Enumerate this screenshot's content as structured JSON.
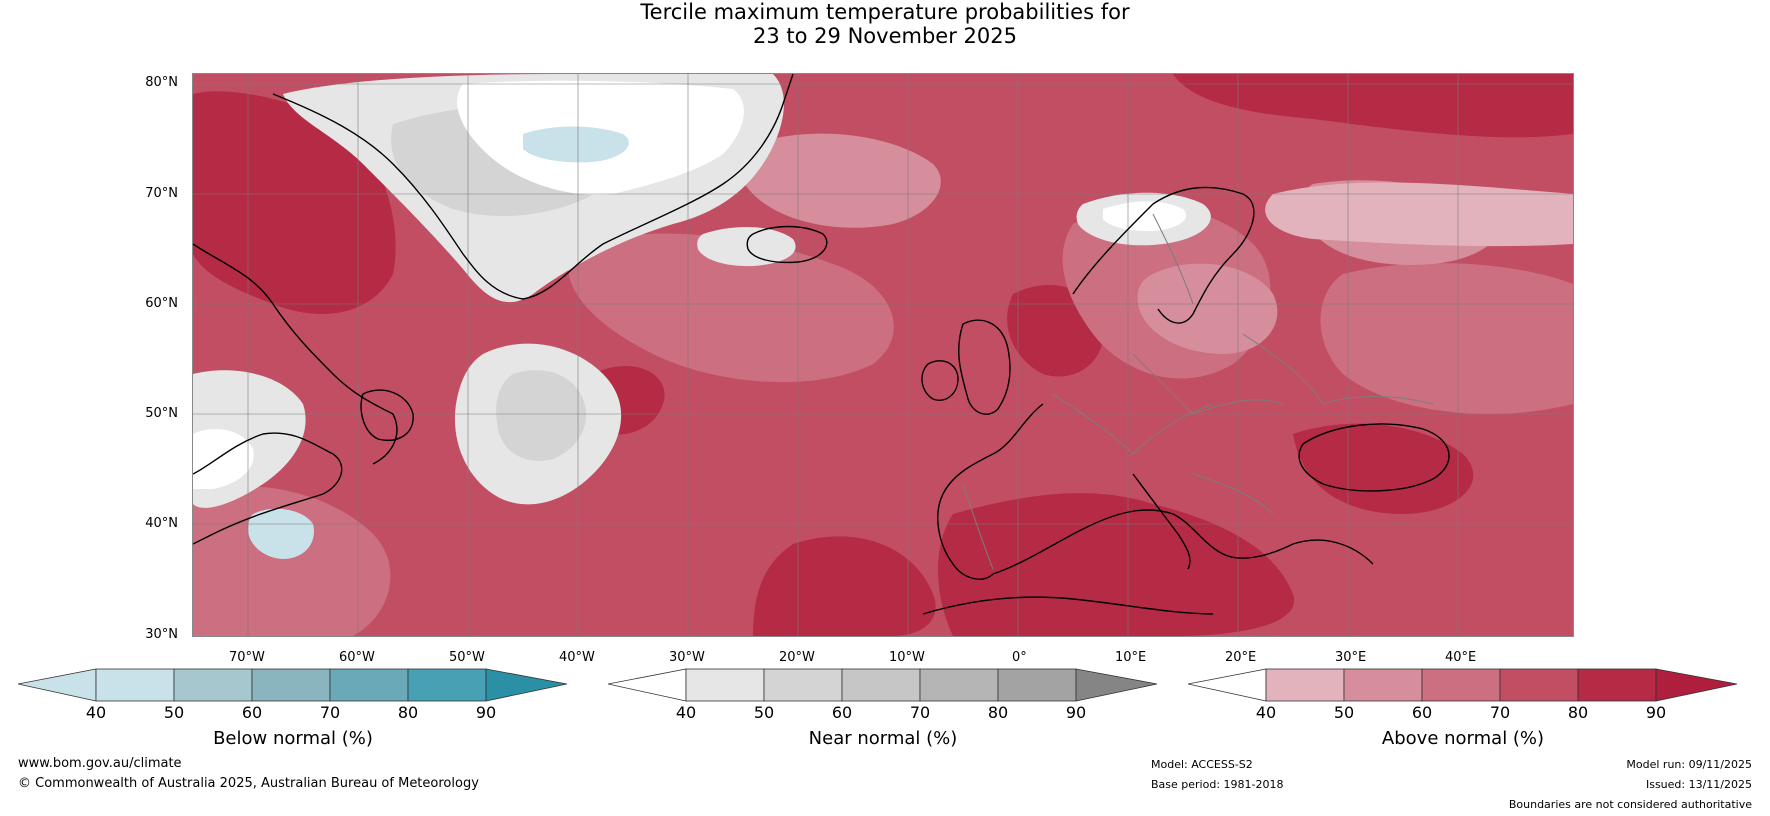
{
  "title": {
    "line1": "Tercile maximum temperature probabilities for",
    "line2": "23 to 29 November 2025"
  },
  "map": {
    "lat_labels": [
      "80°N",
      "70°N",
      "60°N",
      "50°N",
      "40°N",
      "30°N"
    ],
    "lon_labels": [
      "70°W",
      "60°W",
      "50°W",
      "40°W",
      "30°W",
      "20°W",
      "10°W",
      "0°",
      "10°E",
      "20°E",
      "30°E",
      "40°E"
    ],
    "colors": {
      "above_40_50": "#e3b3bd",
      "above_50_60": "#d68e9c",
      "above_60_70": "#cc6f80",
      "above_70_80": "#c24e63",
      "above_80_90": "#b52a45",
      "near_40_50": "#e6e6e6",
      "near_50_60": "#d4d4d4",
      "below_40_50": "#c9e1e8"
    }
  },
  "colorbars": {
    "ticks": [
      "40",
      "50",
      "60",
      "70",
      "80",
      "90"
    ],
    "below": {
      "label": "Below normal (%)",
      "colors": [
        "#c9e1e8",
        "#a7c7ce",
        "#8ab5bf",
        "#6aa9b8",
        "#47a0b3",
        "#2b8fa6"
      ]
    },
    "near": {
      "label": "Near normal (%)",
      "colors": [
        "#e6e6e6",
        "#d4d4d4",
        "#c6c6c6",
        "#b5b5b5",
        "#a3a3a3",
        "#858585"
      ]
    },
    "above": {
      "label": "Above normal (%)",
      "colors": [
        "#e3b3bd",
        "#d68e9c",
        "#cc6f80",
        "#c24e63",
        "#b52a45",
        "#b01e3d"
      ]
    }
  },
  "footer": {
    "website": "www.bom.gov.au/climate",
    "copyright": "© Commonwealth of Australia 2025, Australian Bureau of Meteorology",
    "model": "Model: ACCESS-S2",
    "base_period": "Base period: 1981-2018",
    "model_run": "Model run: 09/11/2025",
    "issued": "Issued: 13/11/2025",
    "disclaimer": "Boundaries are not considered authoritative"
  }
}
